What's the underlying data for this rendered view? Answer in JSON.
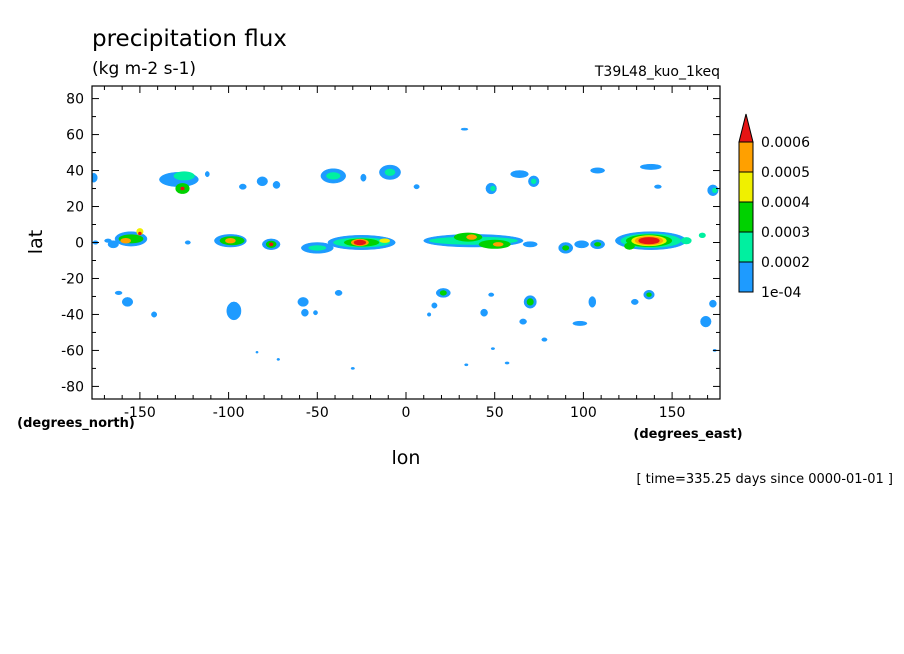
{
  "chart_data": {
    "type": "contour",
    "title": "precipitation flux",
    "subtitle": "(kg m-2 s-1)",
    "model_label": "T39L48_kuo_1keq",
    "xlabel": "lon",
    "ylabel": "lat",
    "x_units": "(degrees_east)",
    "y_units": "(degrees_north)",
    "time_label": "[ time=335.25 days since 0000-01-01 ]",
    "xlim": [
      -177,
      177
    ],
    "ylim": [
      -87,
      87
    ],
    "x_ticks": [
      -150,
      -100,
      -50,
      0,
      50,
      100,
      150
    ],
    "x_tick_labels": [
      "-150",
      "-100",
      "-50",
      "0",
      "50",
      "100",
      "150"
    ],
    "y_ticks": [
      -80,
      -60,
      -40,
      -20,
      0,
      20,
      40,
      60,
      80
    ],
    "y_tick_labels": [
      "-80",
      "-60",
      "-40",
      "-20",
      "0",
      "20",
      "40",
      "60",
      "80"
    ],
    "legend": {
      "placement": "right",
      "levels": [
        0.0001,
        0.0002,
        0.0003,
        0.0004,
        0.0005,
        0.0006
      ],
      "level_labels": [
        "1e-04",
        "0.0002",
        "0.0003",
        "0.0004",
        "0.0005",
        "0.0006"
      ],
      "colors": [
        "#1e9bff",
        "#00f0a0",
        "#00d200",
        "#f0f000",
        "#ffa000",
        "#e61414"
      ]
    },
    "blobs": [
      {
        "lon": -176,
        "lat": 36,
        "rx": 2,
        "ry": 2.5,
        "level": 1
      },
      {
        "lon": -128,
        "lat": 35,
        "rx": 11,
        "ry": 4,
        "level": 1
      },
      {
        "lon": -125,
        "lat": 37,
        "rx": 6,
        "ry": 2.5,
        "level": 2
      },
      {
        "lon": -126,
        "lat": 30,
        "rx": 4,
        "ry": 3,
        "level": 3
      },
      {
        "lon": -126,
        "lat": 30,
        "rx": 1.2,
        "ry": 1,
        "level": 6
      },
      {
        "lon": -81,
        "lat": 34,
        "rx": 3,
        "ry": 2.5,
        "level": 1
      },
      {
        "lon": -73,
        "lat": 32,
        "rx": 2,
        "ry": 2,
        "level": 1
      },
      {
        "lon": -92,
        "lat": 31,
        "rx": 2,
        "ry": 1.5,
        "level": 1
      },
      {
        "lon": -41,
        "lat": 37,
        "rx": 7,
        "ry": 4,
        "level": 1
      },
      {
        "lon": -41,
        "lat": 37,
        "rx": 4,
        "ry": 2,
        "level": 2
      },
      {
        "lon": -9,
        "lat": 39,
        "rx": 6,
        "ry": 4,
        "level": 1
      },
      {
        "lon": -9,
        "lat": 39,
        "rx": 3,
        "ry": 2,
        "level": 2
      },
      {
        "lon": -24,
        "lat": 36,
        "rx": 1.5,
        "ry": 2,
        "level": 1
      },
      {
        "lon": 6,
        "lat": 31,
        "rx": 1.5,
        "ry": 1.2,
        "level": 1
      },
      {
        "lon": 48,
        "lat": 30,
        "rx": 3,
        "ry": 3,
        "level": 1
      },
      {
        "lon": 49,
        "lat": 30,
        "rx": 1.5,
        "ry": 1.5,
        "level": 2
      },
      {
        "lon": 64,
        "lat": 38,
        "rx": 5,
        "ry": 2,
        "level": 1
      },
      {
        "lon": 72,
        "lat": 34,
        "rx": 3,
        "ry": 3,
        "level": 1
      },
      {
        "lon": 72,
        "lat": 34,
        "rx": 1.5,
        "ry": 1.5,
        "level": 2
      },
      {
        "lon": 108,
        "lat": 40,
        "rx": 4,
        "ry": 1.5,
        "level": 1
      },
      {
        "lon": 138,
        "lat": 42,
        "rx": 6,
        "ry": 1.5,
        "level": 1
      },
      {
        "lon": 142,
        "lat": 31,
        "rx": 2,
        "ry": 1,
        "level": 1
      },
      {
        "lon": 173,
        "lat": 29,
        "rx": 3,
        "ry": 3,
        "level": 1
      },
      {
        "lon": 174,
        "lat": 29,
        "rx": 1.5,
        "ry": 1.5,
        "level": 2
      },
      {
        "lon": 33,
        "lat": 63,
        "rx": 2,
        "ry": 0.6,
        "level": 1
      },
      {
        "lon": -112,
        "lat": 38,
        "rx": 1.2,
        "ry": 1.5,
        "level": 1
      },
      {
        "lon": -165,
        "lat": -1,
        "rx": 3,
        "ry": 2,
        "level": 1
      },
      {
        "lon": -155,
        "lat": 2,
        "rx": 9,
        "ry": 4,
        "level": 1
      },
      {
        "lon": -155,
        "lat": 2,
        "rx": 7,
        "ry": 2.5,
        "level": 3
      },
      {
        "lon": -158,
        "lat": 1,
        "rx": 3,
        "ry": 1.5,
        "level": 5
      },
      {
        "lon": -150,
        "lat": 6,
        "rx": 2,
        "ry": 2,
        "level": 4
      },
      {
        "lon": -150,
        "lat": 5,
        "rx": 1,
        "ry": 1,
        "level": 6
      },
      {
        "lon": -99,
        "lat": 1,
        "rx": 9,
        "ry": 3.5,
        "level": 1
      },
      {
        "lon": -98,
        "lat": 1,
        "rx": 7,
        "ry": 2.5,
        "level": 3
      },
      {
        "lon": -99,
        "lat": 1,
        "rx": 3,
        "ry": 1.5,
        "level": 5
      },
      {
        "lon": -76,
        "lat": -1,
        "rx": 5,
        "ry": 3,
        "level": 1
      },
      {
        "lon": -76,
        "lat": -1,
        "rx": 3,
        "ry": 2,
        "level": 3
      },
      {
        "lon": -76,
        "lat": -1,
        "rx": 1.2,
        "ry": 1,
        "level": 6
      },
      {
        "lon": -50,
        "lat": -3,
        "rx": 9,
        "ry": 3,
        "level": 1
      },
      {
        "lon": -50,
        "lat": -3,
        "rx": 5,
        "ry": 1.5,
        "level": 2
      },
      {
        "lon": -25,
        "lat": 0,
        "rx": 19,
        "ry": 4,
        "level": 1
      },
      {
        "lon": -25,
        "lat": 0,
        "rx": 16,
        "ry": 2.8,
        "level": 2
      },
      {
        "lon": -25,
        "lat": 0,
        "rx": 10,
        "ry": 2.2,
        "level": 3
      },
      {
        "lon": -26,
        "lat": 0,
        "rx": 5,
        "ry": 2,
        "level": 5
      },
      {
        "lon": -26,
        "lat": 0,
        "rx": 3.5,
        "ry": 1.5,
        "level": 6
      },
      {
        "lon": -12,
        "lat": 1,
        "rx": 3,
        "ry": 1.2,
        "level": 4
      },
      {
        "lon": 38,
        "lat": 1,
        "rx": 28,
        "ry": 3.5,
        "level": 1
      },
      {
        "lon": 38,
        "lat": 1,
        "rx": 25,
        "ry": 2.2,
        "level": 2
      },
      {
        "lon": 35,
        "lat": 3,
        "rx": 8,
        "ry": 2.5,
        "level": 3
      },
      {
        "lon": 37,
        "lat": 3,
        "rx": 3,
        "ry": 1.5,
        "level": 5
      },
      {
        "lon": 50,
        "lat": -1,
        "rx": 9,
        "ry": 2.5,
        "level": 3
      },
      {
        "lon": 52,
        "lat": -1,
        "rx": 3,
        "ry": 1.2,
        "level": 5
      },
      {
        "lon": 70,
        "lat": -1,
        "rx": 4,
        "ry": 1.5,
        "level": 1
      },
      {
        "lon": 90,
        "lat": -3,
        "rx": 4,
        "ry": 3,
        "level": 1
      },
      {
        "lon": 90,
        "lat": -3,
        "rx": 2,
        "ry": 1.5,
        "level": 3
      },
      {
        "lon": 99,
        "lat": -1,
        "rx": 4,
        "ry": 2,
        "level": 1
      },
      {
        "lon": 108,
        "lat": -1,
        "rx": 4,
        "ry": 2.5,
        "level": 1
      },
      {
        "lon": 108,
        "lat": -1,
        "rx": 2,
        "ry": 1.2,
        "level": 3
      },
      {
        "lon": 138,
        "lat": 1,
        "rx": 20,
        "ry": 5,
        "level": 1
      },
      {
        "lon": 138,
        "lat": 1,
        "rx": 17,
        "ry": 4,
        "level": 2
      },
      {
        "lon": 137,
        "lat": 1,
        "rx": 13,
        "ry": 3.5,
        "level": 3
      },
      {
        "lon": 137,
        "lat": 1,
        "rx": 10,
        "ry": 3,
        "level": 4
      },
      {
        "lon": 137,
        "lat": 1,
        "rx": 8,
        "ry": 2.5,
        "level": 5
      },
      {
        "lon": 137,
        "lat": 1,
        "rx": 6,
        "ry": 2,
        "level": 6
      },
      {
        "lon": 126,
        "lat": -2,
        "rx": 3,
        "ry": 2,
        "level": 3
      },
      {
        "lon": 158,
        "lat": 1,
        "rx": 3,
        "ry": 2,
        "level": 2
      },
      {
        "lon": 167,
        "lat": 4,
        "rx": 2,
        "ry": 1.5,
        "level": 2
      },
      {
        "lon": -168,
        "lat": 1,
        "rx": 2,
        "ry": 1,
        "level": 1
      },
      {
        "lon": -175,
        "lat": 0,
        "rx": 1.5,
        "ry": 1,
        "level": 1
      },
      {
        "lon": -123,
        "lat": 0,
        "rx": 1.5,
        "ry": 1,
        "level": 1
      },
      {
        "lon": -162,
        "lat": -28,
        "rx": 2,
        "ry": 1,
        "level": 1
      },
      {
        "lon": -157,
        "lat": -33,
        "rx": 3,
        "ry": 2.5,
        "level": 1
      },
      {
        "lon": -142,
        "lat": -40,
        "rx": 1.5,
        "ry": 1.5,
        "level": 1
      },
      {
        "lon": -97,
        "lat": -38,
        "rx": 4,
        "ry": 5,
        "level": 1
      },
      {
        "lon": -58,
        "lat": -33,
        "rx": 3,
        "ry": 2.5,
        "level": 1
      },
      {
        "lon": -57,
        "lat": -39,
        "rx": 2,
        "ry": 2,
        "level": 1
      },
      {
        "lon": -38,
        "lat": -28,
        "rx": 2,
        "ry": 1.5,
        "level": 1
      },
      {
        "lon": 21,
        "lat": -28,
        "rx": 4,
        "ry": 2.5,
        "level": 1
      },
      {
        "lon": 21,
        "lat": -28,
        "rx": 2,
        "ry": 1.5,
        "level": 3
      },
      {
        "lon": 16,
        "lat": -35,
        "rx": 1.5,
        "ry": 1.5,
        "level": 1
      },
      {
        "lon": 44,
        "lat": -39,
        "rx": 2,
        "ry": 2,
        "level": 1
      },
      {
        "lon": 48,
        "lat": -29,
        "rx": 1.5,
        "ry": 1,
        "level": 1
      },
      {
        "lon": 70,
        "lat": -33,
        "rx": 3.5,
        "ry": 3.5,
        "level": 1
      },
      {
        "lon": 70,
        "lat": -33,
        "rx": 2,
        "ry": 2,
        "level": 3
      },
      {
        "lon": 66,
        "lat": -44,
        "rx": 2,
        "ry": 1.5,
        "level": 1
      },
      {
        "lon": 105,
        "lat": -33,
        "rx": 2,
        "ry": 3,
        "level": 1
      },
      {
        "lon": 98,
        "lat": -45,
        "rx": 4,
        "ry": 1.2,
        "level": 1
      },
      {
        "lon": 78,
        "lat": -54,
        "rx": 1.5,
        "ry": 1,
        "level": 1
      },
      {
        "lon": 129,
        "lat": -33,
        "rx": 2,
        "ry": 1.5,
        "level": 1
      },
      {
        "lon": 137,
        "lat": -29,
        "rx": 3,
        "ry": 2.5,
        "level": 1
      },
      {
        "lon": 137,
        "lat": -29,
        "rx": 1.5,
        "ry": 1.2,
        "level": 3
      },
      {
        "lon": 169,
        "lat": -44,
        "rx": 3,
        "ry": 3,
        "level": 1
      },
      {
        "lon": 173,
        "lat": -34,
        "rx": 2,
        "ry": 2,
        "level": 1
      },
      {
        "lon": -51,
        "lat": -39,
        "rx": 1.2,
        "ry": 1.2,
        "level": 1
      },
      {
        "lon": 13,
        "lat": -40,
        "rx": 1,
        "ry": 1,
        "level": 1
      },
      {
        "lon": 57,
        "lat": -67,
        "rx": 1.2,
        "ry": 0.6,
        "level": 1
      },
      {
        "lon": 34,
        "lat": -68,
        "rx": 1,
        "ry": 0.6,
        "level": 1
      },
      {
        "lon": -30,
        "lat": -70,
        "rx": 1,
        "ry": 0.6,
        "level": 1
      },
      {
        "lon": -72,
        "lat": -65,
        "rx": 0.8,
        "ry": 0.6,
        "level": 1
      },
      {
        "lon": -84,
        "lat": -61,
        "rx": 0.6,
        "ry": 0.5,
        "level": 1
      },
      {
        "lon": 174,
        "lat": -60,
        "rx": 1,
        "ry": 0.6,
        "level": 1
      },
      {
        "lon": 49,
        "lat": -59,
        "rx": 1,
        "ry": 0.6,
        "level": 1
      }
    ]
  }
}
